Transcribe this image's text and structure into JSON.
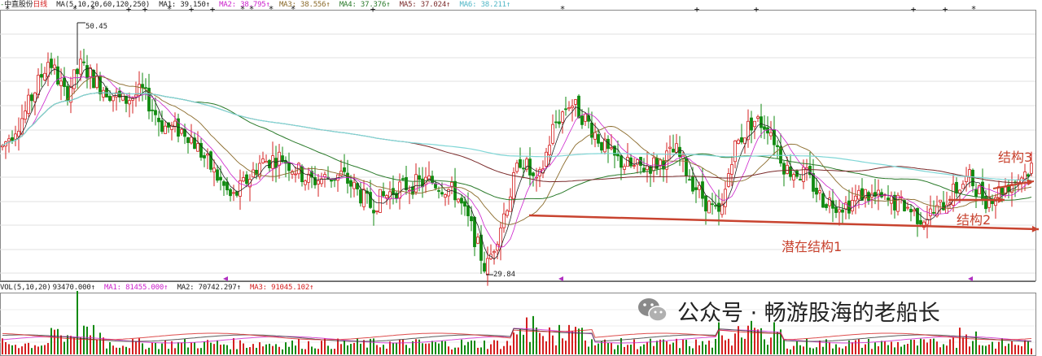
{
  "header": {
    "stock_name": "中直股份",
    "period": "日线",
    "ma_params": "MA(5,10,20,60,120,250)",
    "ma1": "MA1: 39.150↑",
    "ma2": "MA2: 38.795↑",
    "ma3": "MA3: 38.556↑",
    "ma4": "MA4: 37.376↑",
    "ma5": "MA5: 37.024↑",
    "ma6": "MA6: 38.211↑"
  },
  "volume_header": {
    "params": "VOL(5,10,20)",
    "vol": "93470.000↑",
    "ma1": "MA1: 81455.000↑",
    "ma2": "MA2: 70742.297↑",
    "ma3": "MA3: 91045.102↑"
  },
  "annotations": {
    "high_label": "50.45",
    "low_label": "29.84",
    "structure_1": "潜在结构1",
    "structure_2": "结构2",
    "structure_3": "结构3"
  },
  "watermark": {
    "text": "公众号 · 畅游股海的老船长"
  },
  "colors": {
    "up": "#d42020",
    "down": "#108a10",
    "ma1": "#222222",
    "ma2": "#cc22cc",
    "ma3": "#8a6a2a",
    "ma4": "#2a7a2a",
    "ma5": "#7a2a2a",
    "ma6": "#7fd6d6",
    "annotation": "#c8432f"
  },
  "chart_data": {
    "type": "candlestick",
    "period": "daily",
    "price_high": 50.45,
    "price_low": 29.84,
    "moving_averages": [
      "MA5",
      "MA10",
      "MA20",
      "MA60",
      "MA120",
      "MA250"
    ],
    "latest": {
      "MA1": 39.15,
      "MA2": 38.795,
      "MA3": 38.556,
      "MA4": 37.376,
      "MA5": 37.024,
      "MA6": 38.211
    },
    "volume_latest": {
      "VOL": 93470.0,
      "MA1": 81455.0,
      "MA2": 70742.297,
      "MA3": 91045.102
    },
    "grid": true
  }
}
